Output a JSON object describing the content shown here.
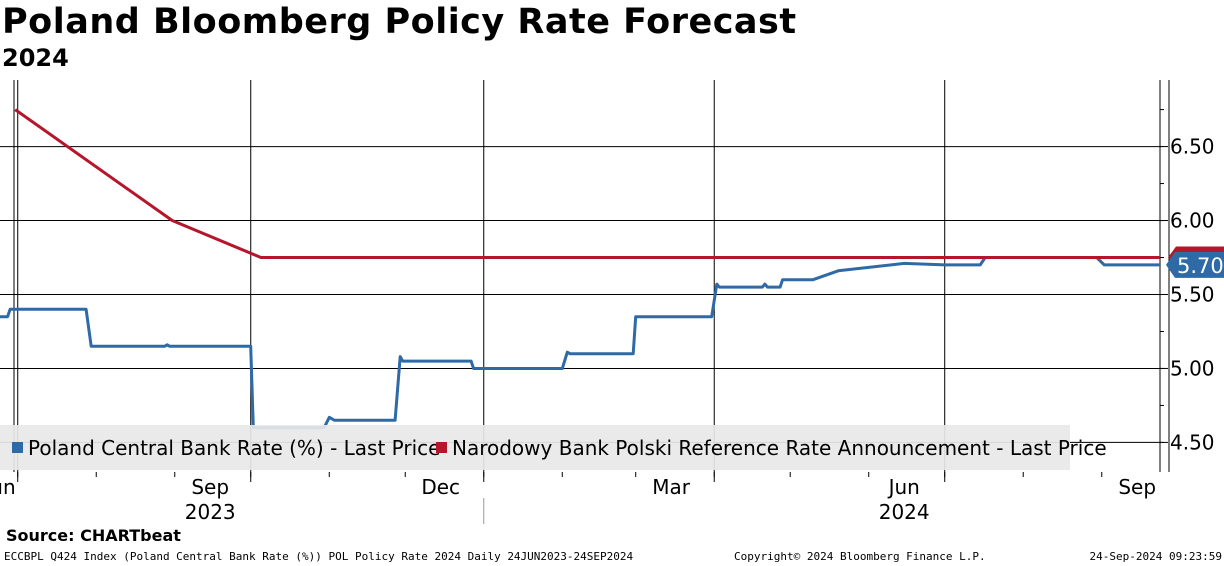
{
  "chart_data": {
    "type": "line",
    "title": "Poland Bloomberg Policy Rate Forecast",
    "subtitle": "2024",
    "x_range": [
      "2023-06-24",
      "2024-09-24"
    ],
    "ylim": [
      4.3,
      6.95
    ],
    "y_ticks": [
      4.5,
      5.0,
      5.5,
      6.0,
      6.5
    ],
    "y_tick_labels": [
      "4.50",
      "5.00",
      "5.50",
      "6.00",
      "6.50"
    ],
    "x_month_ticks": [
      {
        "date": "2023-06-24",
        "label": "Jun"
      },
      {
        "date": "2023-09-15",
        "label": "Sep"
      },
      {
        "date": "2023-12-15",
        "label": "Dec"
      },
      {
        "date": "2024-03-15",
        "label": "Mar"
      },
      {
        "date": "2024-06-15",
        "label": "Jun"
      },
      {
        "date": "2024-09-15",
        "label": "Sep"
      }
    ],
    "x_year_labels": [
      {
        "date": "2023-09-15",
        "label": "2023"
      },
      {
        "date": "2024-06-15",
        "label": "2024"
      }
    ],
    "series": [
      {
        "name": "Poland Central Bank Rate (%) - Last Price",
        "color": "#2e6aa6",
        "last_value_label": "5.70",
        "points": [
          [
            "2023-06-24",
            5.35
          ],
          [
            "2023-06-27",
            5.35
          ],
          [
            "2023-06-28",
            5.4
          ],
          [
            "2023-07-28",
            5.4
          ],
          [
            "2023-07-30",
            5.15
          ],
          [
            "2023-08-28",
            5.15
          ],
          [
            "2023-08-29",
            5.16
          ],
          [
            "2023-08-30",
            5.15
          ],
          [
            "2023-10-01",
            5.15
          ],
          [
            "2023-10-02",
            4.6
          ],
          [
            "2023-10-30",
            4.6
          ],
          [
            "2023-11-01",
            4.67
          ],
          [
            "2023-11-03",
            4.65
          ],
          [
            "2023-11-27",
            4.65
          ],
          [
            "2023-11-29",
            5.08
          ],
          [
            "2023-11-30",
            5.05
          ],
          [
            "2023-12-27",
            5.05
          ],
          [
            "2023-12-28",
            5.0
          ],
          [
            "2024-02-01",
            5.0
          ],
          [
            "2024-02-03",
            5.11
          ],
          [
            "2024-02-04",
            5.1
          ],
          [
            "2024-02-29",
            5.1
          ],
          [
            "2024-03-01",
            5.35
          ],
          [
            "2024-03-31",
            5.35
          ],
          [
            "2024-04-02",
            5.57
          ],
          [
            "2024-04-03",
            5.55
          ],
          [
            "2024-04-20",
            5.55
          ],
          [
            "2024-04-21",
            5.57
          ],
          [
            "2024-04-22",
            5.55
          ],
          [
            "2024-04-27",
            5.55
          ],
          [
            "2024-04-28",
            5.6
          ],
          [
            "2024-05-10",
            5.6
          ],
          [
            "2024-05-20",
            5.66
          ],
          [
            "2024-06-15",
            5.71
          ],
          [
            "2024-07-01",
            5.7
          ],
          [
            "2024-07-15",
            5.7
          ],
          [
            "2024-07-17",
            5.75
          ],
          [
            "2024-08-30",
            5.75
          ],
          [
            "2024-09-02",
            5.7
          ],
          [
            "2024-09-24",
            5.7
          ]
        ]
      },
      {
        "name": "Narodowy Bank Polski Reference Rate Announcement - Last Price",
        "color": "#b5162b",
        "points": [
          [
            "2023-06-30",
            6.75
          ],
          [
            "2023-08-31",
            6.0
          ],
          [
            "2023-10-05",
            5.75
          ],
          [
            "2024-09-24",
            5.75
          ]
        ]
      }
    ]
  },
  "source": "Source:  CHARTbeat",
  "footer": {
    "left": "ECCBPL Q424 Index (Poland Central Bank Rate (%)) POL Policy Rate 2024  Daily 24JUN2023-24SEP2024",
    "middle": "Copyright© 2024 Bloomberg Finance L.P.",
    "right": "24-Sep-2024 09:23:59"
  }
}
